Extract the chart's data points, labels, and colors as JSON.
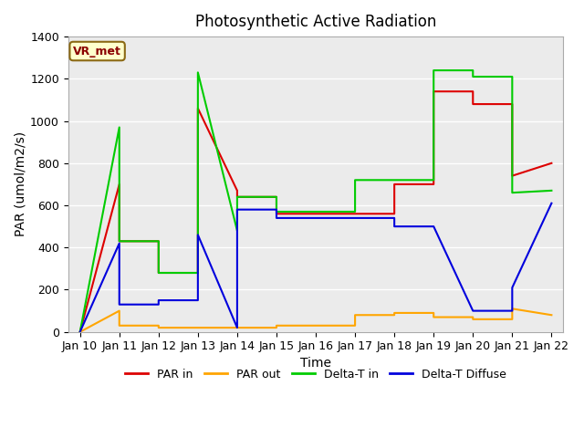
{
  "title": "Photosynthetic Active Radiation",
  "xlabel": "Time",
  "ylabel": "PAR (umol/m2/s)",
  "annotation": "VR_met",
  "ylim": [
    0,
    1400
  ],
  "background_color": "#e8e8e8",
  "plot_bg": "#ebebeb",
  "x_labels": [
    "Jan 10",
    "Jan 11",
    "Jan 12",
    "Jan 13",
    "Jan 14",
    "Jan 15",
    "Jan 16",
    "Jan 17",
    "Jan 18",
    "Jan 19",
    "Jan 20",
    "Jan 21",
    "Jan 22"
  ],
  "x_values": [
    0,
    1,
    2,
    3,
    4,
    5,
    6,
    7,
    8,
    9,
    10,
    11,
    12
  ],
  "series": {
    "PAR in": {
      "color": "#dd0000",
      "x": [
        0,
        1,
        1,
        2,
        2,
        3,
        3,
        4,
        4,
        5,
        5,
        6,
        6,
        7,
        7,
        8,
        8,
        9,
        9,
        10,
        10,
        11,
        11,
        11,
        12
      ],
      "y": [
        0,
        700,
        430,
        430,
        280,
        280,
        1060,
        670,
        640,
        640,
        560,
        560,
        560,
        560,
        560,
        560,
        700,
        700,
        1140,
        1140,
        1080,
        1080,
        1060,
        740,
        800
      ]
    },
    "PAR out": {
      "color": "#ffa500",
      "x": [
        0,
        1,
        1,
        2,
        2,
        3,
        3,
        4,
        4,
        5,
        5,
        6,
        6,
        7,
        7,
        8,
        8,
        9,
        9,
        10,
        10,
        11,
        11,
        12
      ],
      "y": [
        0,
        100,
        30,
        30,
        20,
        20,
        20,
        20,
        20,
        20,
        30,
        30,
        30,
        30,
        80,
        80,
        90,
        90,
        70,
        70,
        60,
        60,
        110,
        80
      ]
    },
    "Delta-T in": {
      "color": "#00cc00",
      "x": [
        0,
        1,
        1,
        2,
        2,
        3,
        3,
        4,
        4,
        5,
        5,
        6,
        6,
        7,
        7,
        8,
        8,
        9,
        9,
        10,
        10,
        11,
        11,
        12
      ],
      "y": [
        0,
        970,
        430,
        430,
        280,
        280,
        1230,
        480,
        640,
        640,
        570,
        570,
        570,
        570,
        720,
        720,
        720,
        720,
        1240,
        1240,
        1210,
        1210,
        660,
        670
      ]
    },
    "Delta-T Diffuse": {
      "color": "#0000dd",
      "x": [
        0,
        1,
        1,
        2,
        2,
        3,
        3,
        4,
        4,
        5,
        5,
        6,
        6,
        7,
        7,
        8,
        8,
        9,
        9,
        10,
        10,
        11,
        11,
        12
      ],
      "y": [
        0,
        420,
        130,
        130,
        150,
        150,
        460,
        20,
        580,
        580,
        540,
        540,
        540,
        540,
        540,
        540,
        500,
        500,
        500,
        100,
        100,
        100,
        210,
        610
      ]
    }
  },
  "legend_entries": [
    "PAR in",
    "PAR out",
    "Delta-T in",
    "Delta-T Diffuse"
  ],
  "legend_colors": [
    "#dd0000",
    "#ffa500",
    "#00cc00",
    "#0000dd"
  ]
}
